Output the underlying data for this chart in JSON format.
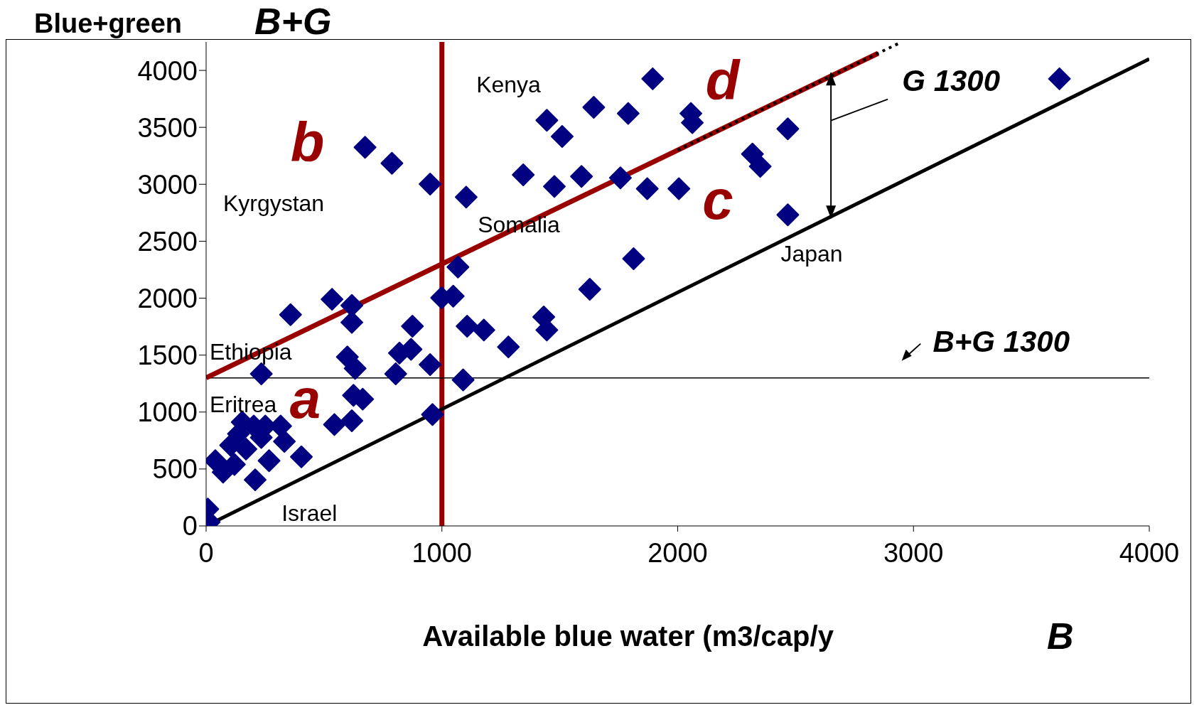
{
  "chart_data": {
    "type": "scatter",
    "ylabel": "Blue+green",
    "xlabel": "Available blue water (m3/cap/y",
    "xlim": [
      0,
      4000
    ],
    "ylim": [
      0,
      4250
    ],
    "xticks": [
      0,
      1000,
      2000,
      3000,
      4000
    ],
    "yticks": [
      0,
      500,
      1000,
      1500,
      2000,
      2500,
      3000,
      3500,
      4000
    ],
    "grid": false,
    "series": [
      {
        "marker": "diamond",
        "color": "#000080",
        "x": [
          7,
          13,
          39,
          72,
          120,
          104,
          137,
          153,
          202,
          251,
          316,
          169,
          234,
          267,
          332,
          404,
          208,
          234,
          358,
          534,
          618,
          618,
          599,
          632,
          544,
          618,
          625,
          664,
          820,
          869,
          875,
          804,
          950,
          960,
          674,
          788,
          950,
          1103,
          999,
          1048,
          1068,
          1107,
          1178,
          1090,
          1282,
          1345,
          1445,
          1510,
          1477,
          1432,
          1445,
          1592,
          1644,
          1790,
          1757,
          1894,
          1871,
          1627,
          1813,
          2005,
          2056,
          2062,
          2317,
          2350,
          2467,
          2467,
          3619
        ],
        "values": [
          148,
          34,
          573,
          472,
          540,
          708,
          809,
          911,
          877,
          877,
          877,
          675,
          776,
          573,
          742,
          607,
          405,
          1336,
          1855,
          1990,
          1936,
          1787,
          1484,
          1383,
          890,
          924,
          1147,
          1113,
          1518,
          1551,
          1754,
          1336,
          1417,
          978,
          3325,
          3184,
          3002,
          2887,
          2003,
          2017,
          2273,
          1754,
          1720,
          1282,
          1572,
          3083,
          3562,
          3420,
          2981,
          1835,
          1720,
          3069,
          3676,
          3622,
          3056,
          3926,
          2961,
          2078,
          2347,
          2961,
          3622,
          3541,
          3265,
          3157,
          3487,
          2732,
          3926
        ]
      },
      {
        "type": "line",
        "marker": "none",
        "color": "#990000",
        "x": [
          0,
          2850
        ],
        "values": [
          1300,
          4150
        ]
      },
      {
        "type": "line",
        "marker": "none",
        "color": "#000000",
        "x": [
          0,
          4000
        ],
        "values": [
          0,
          4100
        ]
      },
      {
        "type": "line",
        "marker": "none",
        "color": "#000000",
        "line_style": "dotted",
        "x": [
          2000,
          2950
        ],
        "values": [
          3300,
          4250
        ]
      }
    ],
    "ref_lines": [
      {
        "axis": "x",
        "value": 1000,
        "color": "#990000"
      },
      {
        "axis": "y",
        "value": 1300,
        "color": "#000000"
      }
    ],
    "annotations": [
      "B+G",
      "B",
      "Kenya",
      "Kyrgystan",
      "Somalia",
      "Ethiopia",
      "Eritrea",
      "Israel",
      {
        "text": "Japan",
        "x": 2467,
        "y": 2732
      },
      "a",
      "b",
      "c",
      "d",
      "G 1300",
      "B+G 1300"
    ]
  }
}
